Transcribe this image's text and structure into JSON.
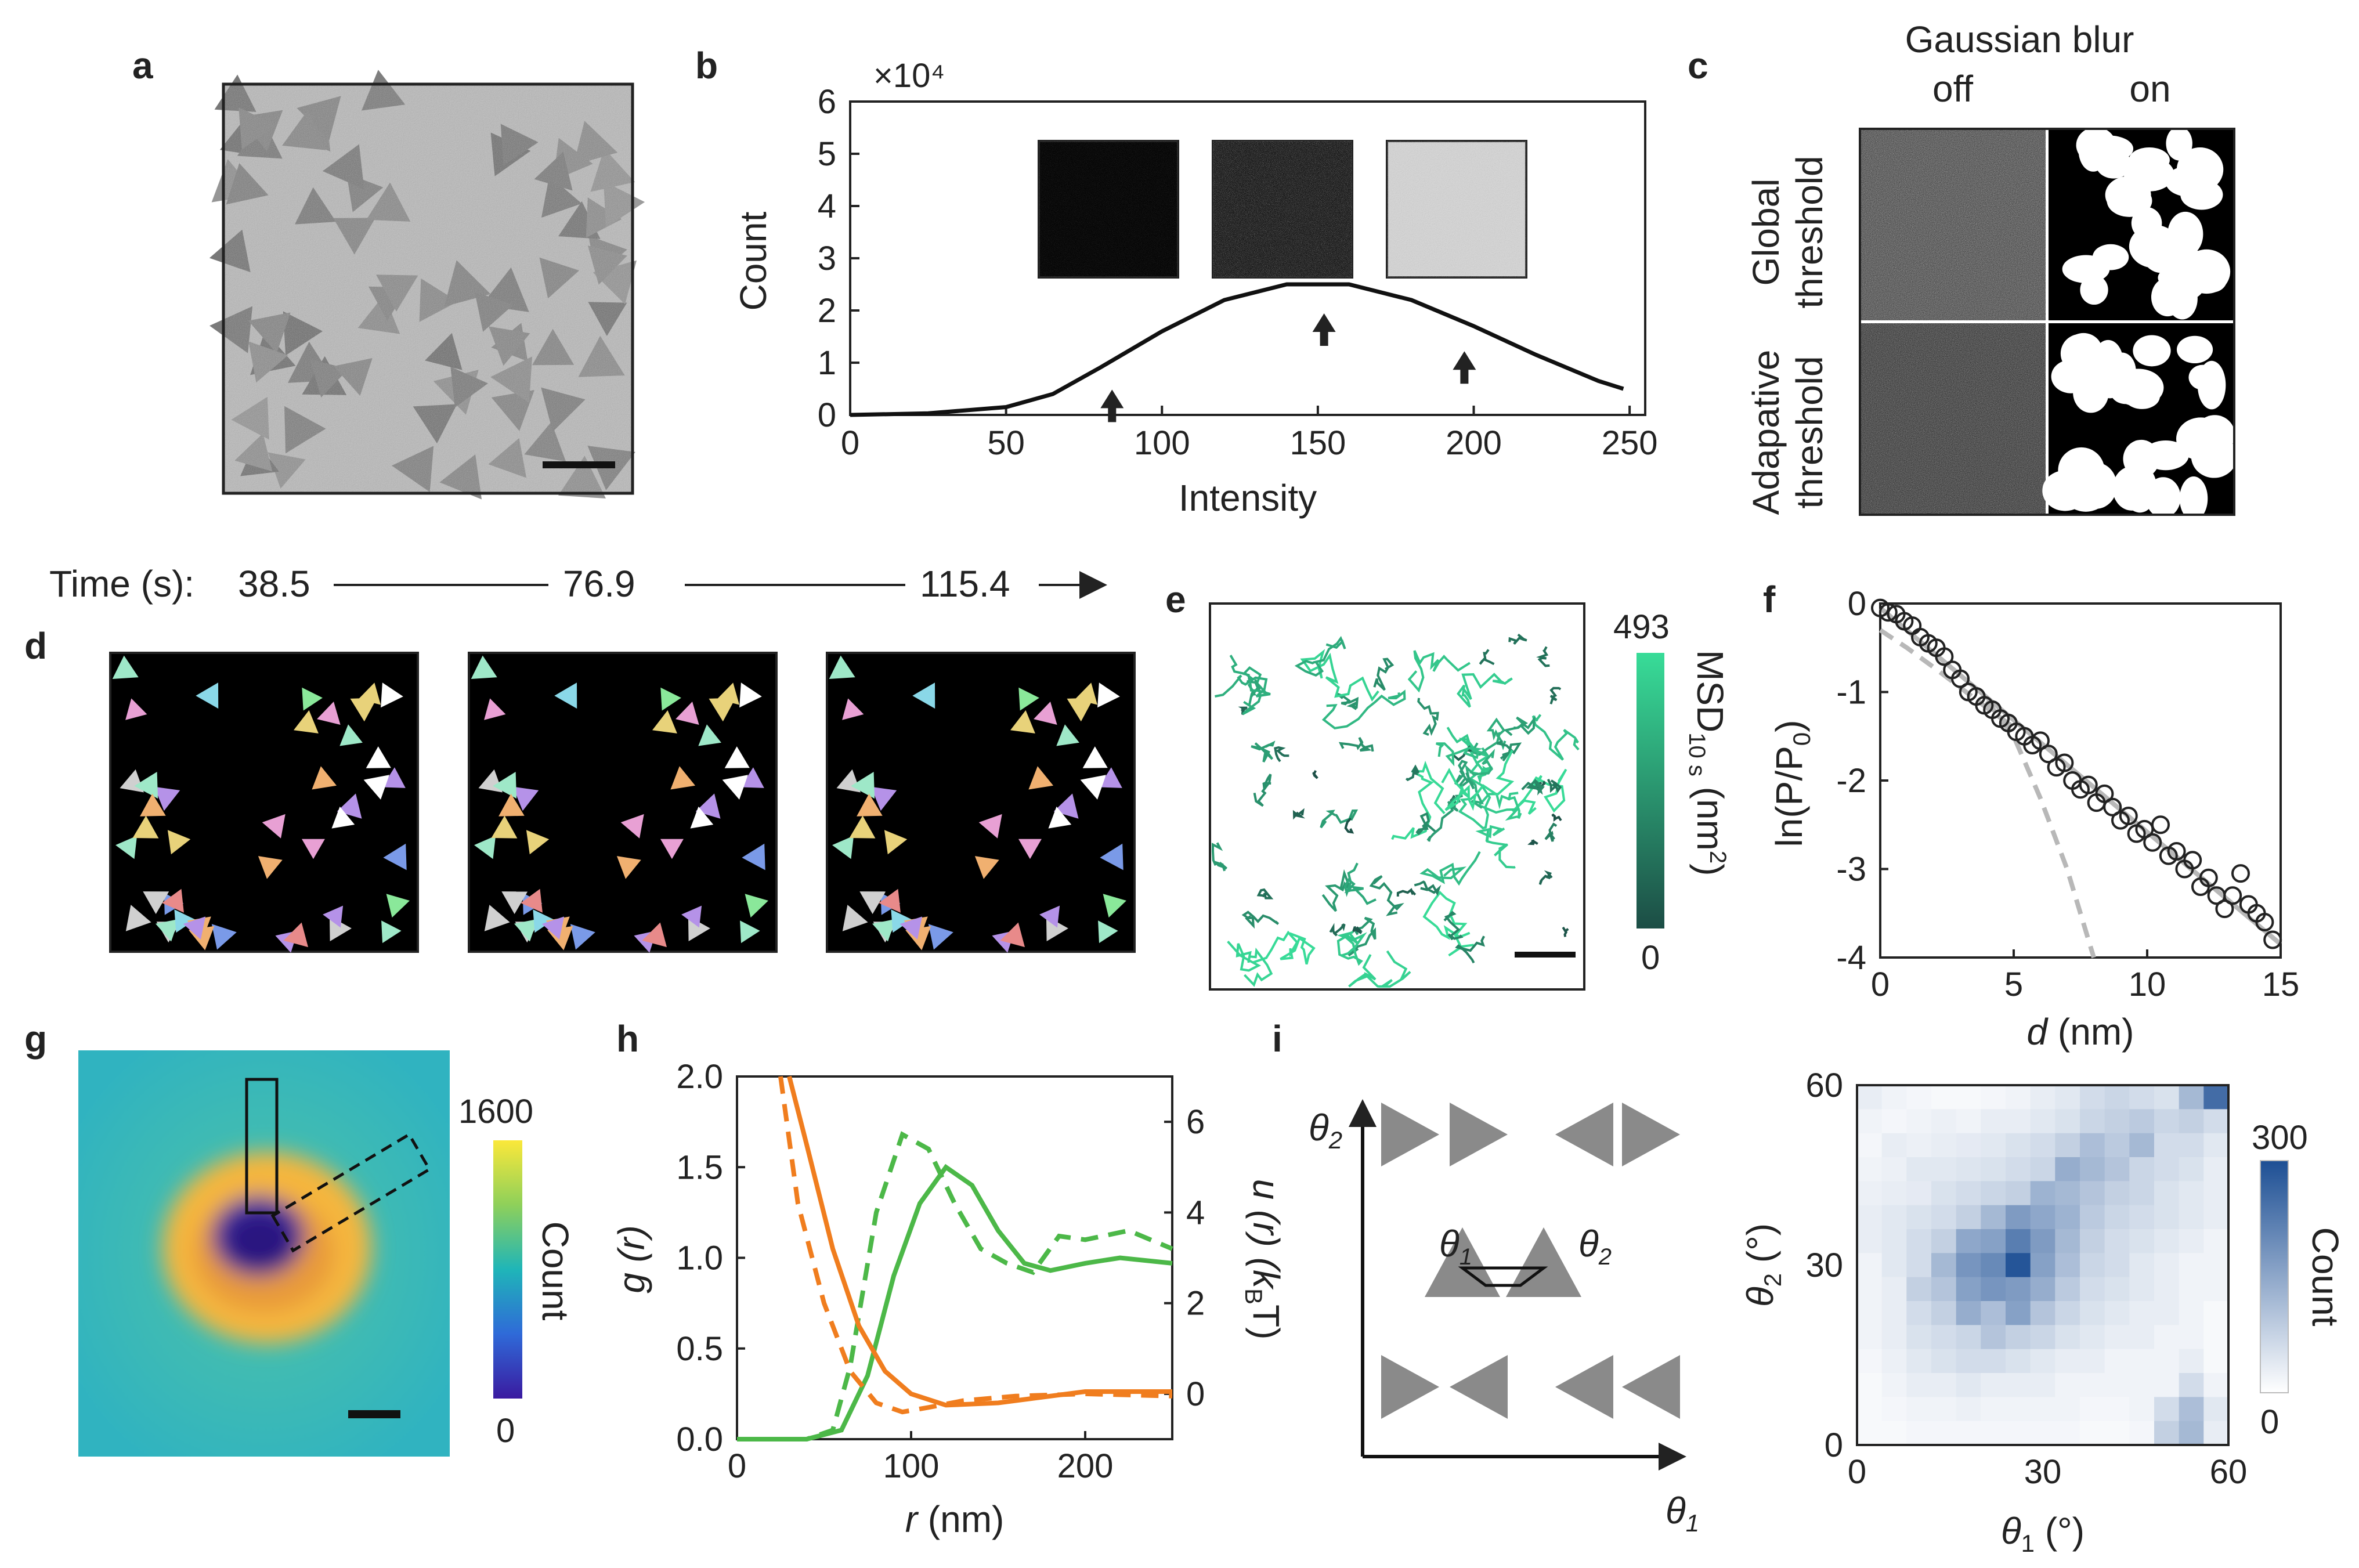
{
  "panel_labels": {
    "a": "a",
    "b": "b",
    "c": "c",
    "d": "d",
    "e": "e",
    "f": "f",
    "g": "g",
    "h": "h",
    "i": "i"
  },
  "colors": {
    "green": "#4cb848",
    "orange": "#f07d1e",
    "dark": "#222222",
    "grey_fit": "#b8b8b8"
  },
  "panel_b": {
    "exponent_label": "×10⁴",
    "arrow_at_intensity": [
      84,
      152,
      197
    ],
    "chart_data": {
      "type": "line",
      "title": "",
      "xlabel": "Intensity",
      "ylabel": "Count",
      "x_ticks": [
        "0",
        "50",
        "100",
        "150",
        "200",
        "250"
      ],
      "y_ticks": [
        "0",
        "1",
        "2",
        "3",
        "4",
        "5",
        "6"
      ],
      "xlim": [
        0,
        255
      ],
      "ylim": [
        0,
        6
      ],
      "series": [
        {
          "name": "histogram",
          "x": [
            0,
            25,
            50,
            65,
            80,
            100,
            120,
            140,
            160,
            180,
            200,
            220,
            240,
            248
          ],
          "values": [
            0,
            0.03,
            0.15,
            0.4,
            0.9,
            1.6,
            2.2,
            2.5,
            2.5,
            2.2,
            1.7,
            1.15,
            0.65,
            0.5
          ]
        }
      ]
    }
  },
  "panel_c": {
    "blur_title": "Gaussian blur",
    "col_off": "off",
    "col_on": "on",
    "row1_a": "Global",
    "row1_b": "threshold",
    "row2_a": "Adapative",
    "row2_b": "threshold"
  },
  "timeline": {
    "prefix": "Time (s):",
    "t1": "38.5",
    "t2": "76.9",
    "t3": "115.4"
  },
  "panel_e": {
    "cbar_max": "493",
    "cbar_min": "0",
    "cbar_label": "MSD",
    "cbar_label_sub": "10 s",
    "cbar_label_unit": " (nm",
    "cbar_label_sup": "2",
    "cbar_label_end": ")"
  },
  "panel_f": {
    "ylabel": "ln(P/P",
    "ylabel_sub": "0",
    "ylabel_end": ")",
    "xlabel": "d",
    "xlabel_unit": " (nm)",
    "chart_data": {
      "type": "scatter",
      "xlim": [
        0,
        15
      ],
      "ylim": [
        -4,
        0
      ],
      "x_ticks": [
        "0",
        "5",
        "10",
        "15"
      ],
      "y_ticks": [
        "0",
        "-1",
        "-2",
        "-3",
        "-4"
      ],
      "points": {
        "x": [
          0,
          0.3,
          0.6,
          0.9,
          1.2,
          1.5,
          1.8,
          2.1,
          2.4,
          2.7,
          3.0,
          3.3,
          3.6,
          3.9,
          4.2,
          4.5,
          4.8,
          5.1,
          5.4,
          5.7,
          6.0,
          6.3,
          6.6,
          6.9,
          7.2,
          7.5,
          7.8,
          8.1,
          8.4,
          8.7,
          9.0,
          9.3,
          9.6,
          9.9,
          10.2,
          10.5,
          10.8,
          11.1,
          11.4,
          11.7,
          12.0,
          12.3,
          12.6,
          12.9,
          13.2,
          13.5,
          13.8,
          14.1,
          14.4,
          14.7
        ],
        "y": [
          -0.05,
          -0.1,
          -0.12,
          -0.2,
          -0.25,
          -0.38,
          -0.45,
          -0.5,
          -0.6,
          -0.75,
          -0.85,
          -1.0,
          -1.05,
          -1.15,
          -1.2,
          -1.3,
          -1.35,
          -1.45,
          -1.5,
          -1.6,
          -1.55,
          -1.7,
          -1.85,
          -1.8,
          -2.0,
          -2.1,
          -2.05,
          -2.25,
          -2.15,
          -2.3,
          -2.45,
          -2.4,
          -2.6,
          -2.55,
          -2.7,
          -2.5,
          -2.85,
          -2.8,
          -3.0,
          -2.9,
          -3.2,
          -3.1,
          -3.3,
          -3.45,
          -3.3,
          -3.05,
          -3.4,
          -3.5,
          -3.6,
          -3.8
        ]
      },
      "fit_line": {
        "x": [
          0,
          15
        ],
        "y": [
          -0.05,
          -3.85
        ]
      },
      "dashed_fits": [
        {
          "x": [
            0,
            1,
            2,
            3,
            4,
            5
          ],
          "y": [
            -0.3,
            -0.5,
            -0.72,
            -0.95,
            -1.18,
            -1.4
          ]
        },
        {
          "x": [
            4,
            5,
            6,
            7,
            7.5,
            8
          ],
          "y": [
            -1.1,
            -1.5,
            -2.2,
            -3.0,
            -3.5,
            -4.0
          ]
        }
      ]
    }
  },
  "panel_g": {
    "cbar_max": "1600",
    "cbar_min": "0",
    "cbar_label": "Count"
  },
  "panel_h": {
    "ylabel_left": "g (r)",
    "ylabel_right_a": "u (r) (k",
    "ylabel_right_sub": "B",
    "ylabel_right_b": "T)",
    "xlabel_r": "r",
    "xlabel_unit": " (nm)",
    "chart_data": {
      "type": "line",
      "xlim": [
        0,
        250
      ],
      "ylim_left": [
        0,
        2.0
      ],
      "ylim_right": [
        -1,
        7
      ],
      "x_ticks": [
        "0",
        "100",
        "200"
      ],
      "y_ticks_left": [
        "0.0",
        "0.5",
        "1.0",
        "1.5",
        "2.0"
      ],
      "y_ticks_right": [
        "0",
        "2",
        "4",
        "6"
      ],
      "series": [
        {
          "name": "g(r) solid",
          "axis": "left",
          "x": [
            0,
            40,
            60,
            75,
            90,
            105,
            120,
            135,
            150,
            165,
            180,
            200,
            220,
            250
          ],
          "values": [
            0,
            0,
            0.05,
            0.35,
            0.9,
            1.3,
            1.5,
            1.4,
            1.15,
            0.97,
            0.93,
            0.97,
            1.0,
            0.97
          ]
        },
        {
          "name": "g(r) dashed",
          "axis": "left",
          "x": [
            0,
            40,
            55,
            65,
            80,
            95,
            110,
            125,
            140,
            155,
            170,
            185,
            200,
            225,
            250
          ],
          "values": [
            0,
            0,
            0.05,
            0.4,
            1.25,
            1.68,
            1.6,
            1.3,
            1.05,
            0.97,
            0.92,
            1.12,
            1.1,
            1.15,
            1.05
          ]
        },
        {
          "name": "u(r) solid",
          "axis": "right",
          "x": [
            30,
            40,
            55,
            70,
            85,
            100,
            120,
            150,
            200,
            250
          ],
          "values": [
            7,
            5.5,
            3.2,
            1.5,
            0.5,
            0.0,
            -0.25,
            -0.2,
            0.05,
            0.05
          ]
        },
        {
          "name": "u(r) dashed",
          "axis": "right",
          "x": [
            25,
            35,
            50,
            65,
            80,
            95,
            110,
            130,
            160,
            200,
            250
          ],
          "values": [
            7,
            4.2,
            2.0,
            0.5,
            -0.2,
            -0.4,
            -0.3,
            -0.15,
            -0.05,
            0.0,
            -0.05
          ]
        }
      ]
    }
  },
  "panel_i": {
    "theta_axis_y": "θ",
    "theta_axis_y_sub": "2",
    "theta_axis_x": "θ",
    "theta_axis_x_sub": "1",
    "inset_theta1": "θ",
    "inset_theta1_sub": "1",
    "inset_theta2": "θ",
    "inset_theta2_sub": "2",
    "heat_ylabel": "θ",
    "heat_ylabel_sub": "2",
    "heat_ylabel_unit": " (°)",
    "heat_xlabel": "θ",
    "heat_xlabel_sub": "1",
    "heat_xlabel_unit": " (°)",
    "cbar_max": "300",
    "cbar_min": "0",
    "cbar_label": "Count",
    "chart_data": {
      "type": "heatmap",
      "xlim": [
        0,
        60
      ],
      "ylim": [
        0,
        60
      ],
      "x_ticks": [
        "0",
        "30",
        "60"
      ],
      "y_ticks": [
        "0",
        "30",
        "60"
      ],
      "grid_n": 15,
      "zmax": 300,
      "values": [
        [
          30,
          20,
          15,
          10,
          10,
          15,
          20,
          30,
          40,
          60,
          70,
          60,
          50,
          120,
          250
        ],
        [
          20,
          15,
          20,
          25,
          20,
          30,
          30,
          40,
          50,
          70,
          80,
          90,
          70,
          80,
          60
        ],
        [
          15,
          30,
          25,
          30,
          35,
          40,
          50,
          60,
          80,
          110,
          90,
          120,
          60,
          60,
          40
        ],
        [
          20,
          25,
          40,
          40,
          45,
          50,
          60,
          70,
          140,
          120,
          100,
          70,
          60,
          50,
          30
        ],
        [
          25,
          30,
          35,
          50,
          60,
          70,
          80,
          130,
          120,
          100,
          80,
          70,
          50,
          40,
          30
        ],
        [
          30,
          40,
          50,
          60,
          80,
          120,
          170,
          150,
          130,
          90,
          70,
          60,
          50,
          40,
          30
        ],
        [
          30,
          40,
          60,
          80,
          150,
          160,
          220,
          170,
          120,
          80,
          60,
          50,
          40,
          30,
          20
        ],
        [
          20,
          40,
          60,
          120,
          180,
          200,
          290,
          160,
          110,
          70,
          60,
          40,
          30,
          20,
          20
        ],
        [
          20,
          30,
          80,
          100,
          160,
          180,
          170,
          140,
          90,
          60,
          50,
          40,
          30,
          20,
          20
        ],
        [
          20,
          30,
          60,
          80,
          140,
          110,
          160,
          100,
          70,
          50,
          40,
          30,
          30,
          20,
          10
        ],
        [
          20,
          30,
          50,
          60,
          70,
          100,
          80,
          70,
          50,
          40,
          30,
          30,
          20,
          20,
          10
        ],
        [
          15,
          25,
          40,
          50,
          60,
          60,
          50,
          40,
          30,
          30,
          20,
          20,
          20,
          30,
          10
        ],
        [
          10,
          20,
          30,
          30,
          40,
          30,
          30,
          30,
          20,
          20,
          20,
          20,
          20,
          60,
          20
        ],
        [
          10,
          15,
          20,
          20,
          25,
          20,
          20,
          20,
          20,
          15,
          15,
          20,
          60,
          110,
          40
        ],
        [
          10,
          10,
          15,
          15,
          15,
          15,
          15,
          15,
          15,
          10,
          10,
          15,
          80,
          120,
          30
        ]
      ]
    }
  }
}
